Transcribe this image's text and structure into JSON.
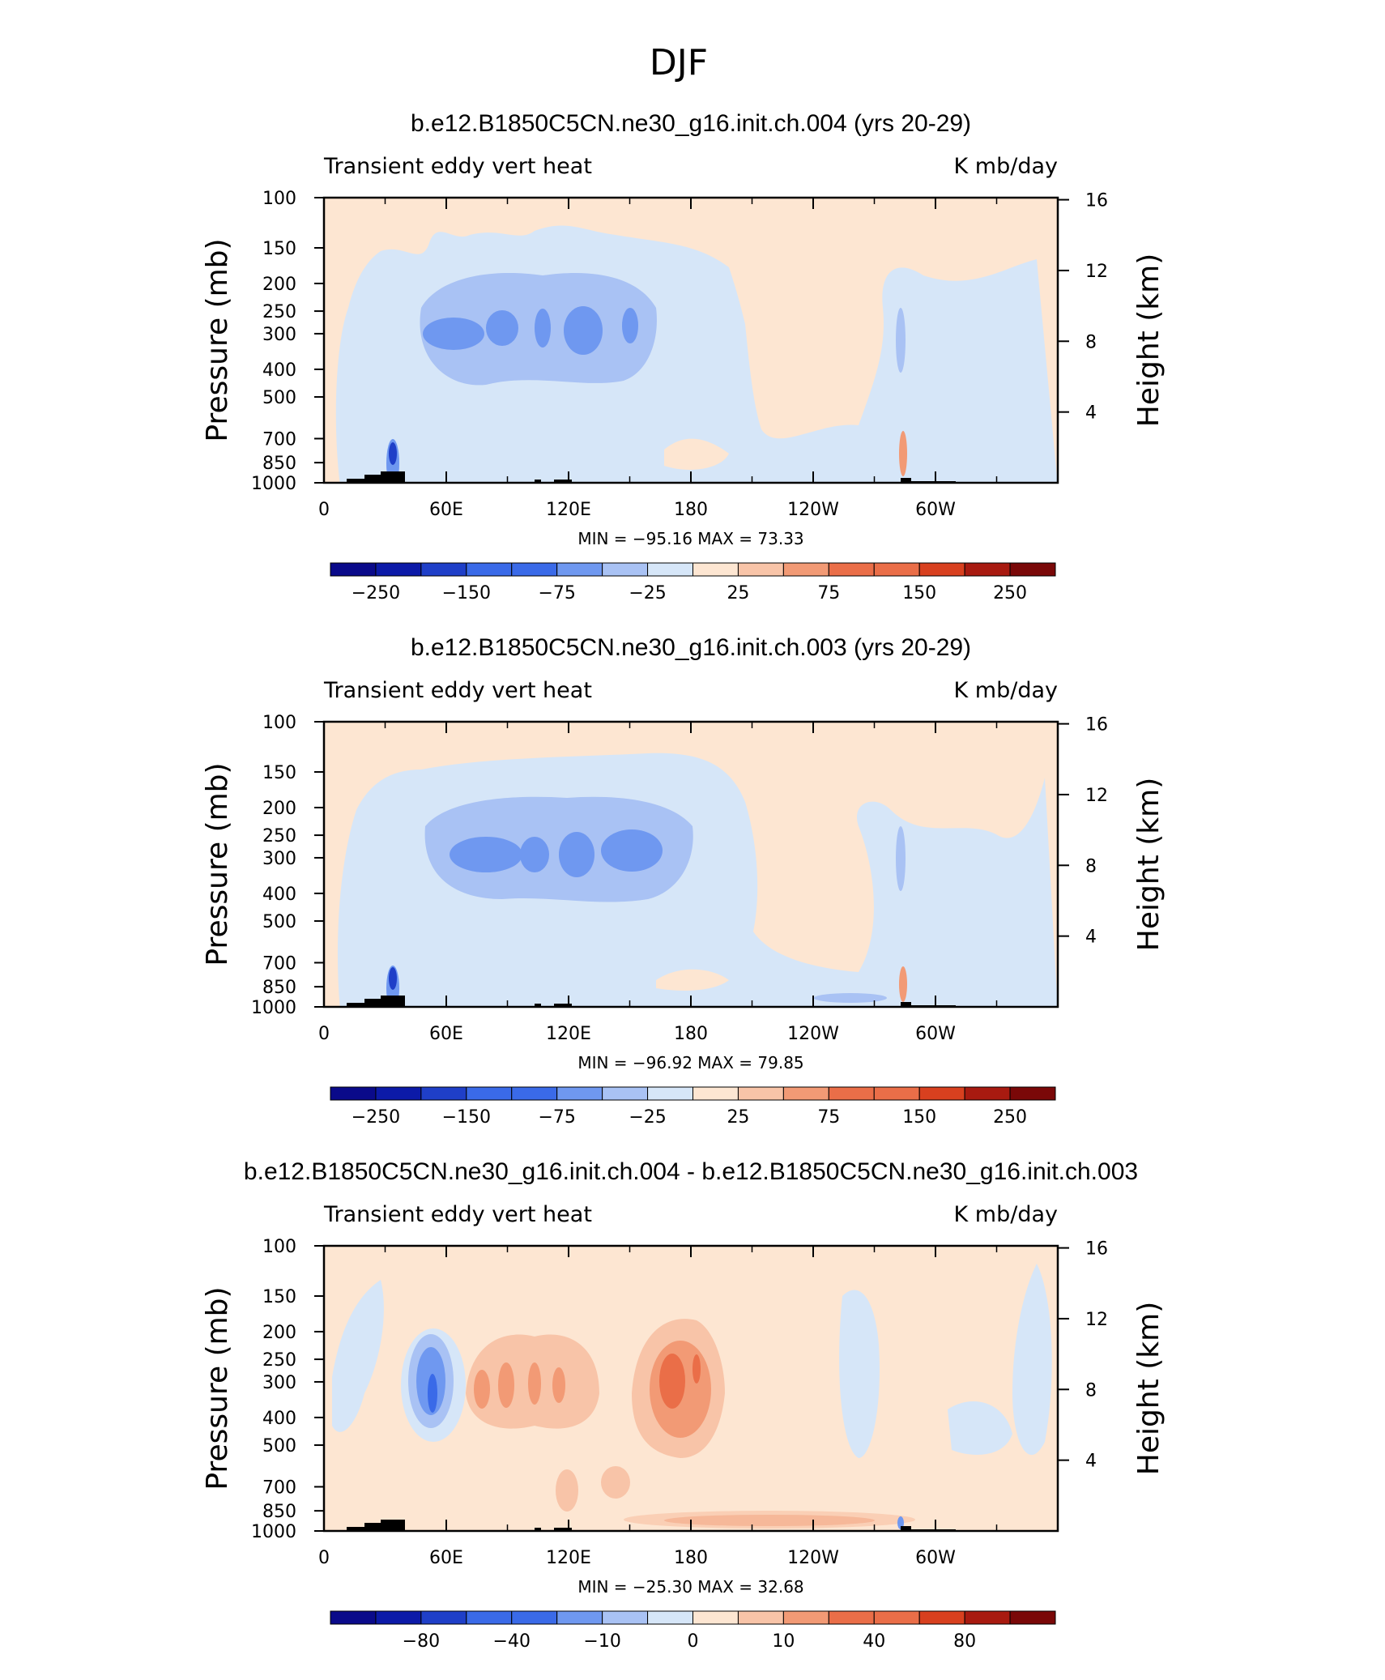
{
  "figure_title": "DJF",
  "palette": {
    "n_blue_dark": "#0a0a8a",
    "n_blue": "#1f3fc8",
    "n_blue_mid": "#3a6ae8",
    "n_blue_light": "#6f98f0",
    "n_blue_pale": "#a9c2f4",
    "n_blue_faint": "#d6e6f8",
    "p_faint": "#fde6d2",
    "p_pale": "#f8c4a8",
    "p_light": "#f29a75",
    "p_mid": "#ea6e48",
    "p_red": "#d8401f",
    "p_dark": "#a81a10",
    "p_darkest": "#7a0808",
    "topo": "#000000"
  },
  "chart_data": [
    {
      "type": "heatmap",
      "title": "b.e12.B1850C5CN.ne30_g16.init.ch.004 (yrs 20-29)",
      "left_label": "Transient eddy vert heat",
      "right_label": "K mb/day",
      "ylabel": "Pressure (mb)",
      "ylabel_right": "Height (km)",
      "x_ticks": [
        "0",
        "60E",
        "120E",
        "180",
        "120W",
        "60W"
      ],
      "x_tick_values": [
        0,
        60,
        120,
        180,
        240,
        300
      ],
      "xlim": [
        0,
        360
      ],
      "y_ticks": [
        "100",
        "150",
        "200",
        "250",
        "300",
        "400",
        "500",
        "700",
        "850",
        "1000"
      ],
      "y_tick_values": [
        100,
        150,
        200,
        250,
        300,
        400,
        500,
        700,
        850,
        1000
      ],
      "ylim": [
        1000,
        100
      ],
      "y_right_ticks": [
        "16",
        "12",
        "8",
        "4"
      ],
      "y_right_values": [
        16,
        12,
        8,
        4
      ],
      "min_max_text": "MIN = −95.16   MAX =   73.33",
      "min": -95.16,
      "max": 73.33,
      "colorbar_labels": [
        "−250",
        "−150",
        "−75",
        "−25",
        "25",
        "75",
        "150",
        "250"
      ]
    },
    {
      "type": "heatmap",
      "title": "b.e12.B1850C5CN.ne30_g16.init.ch.003 (yrs 20-29)",
      "left_label": "Transient eddy vert heat",
      "right_label": "K mb/day",
      "ylabel": "Pressure (mb)",
      "ylabel_right": "Height (km)",
      "x_ticks": [
        "0",
        "60E",
        "120E",
        "180",
        "120W",
        "60W"
      ],
      "x_tick_values": [
        0,
        60,
        120,
        180,
        240,
        300
      ],
      "xlim": [
        0,
        360
      ],
      "y_ticks": [
        "100",
        "150",
        "200",
        "250",
        "300",
        "400",
        "500",
        "700",
        "850",
        "1000"
      ],
      "y_tick_values": [
        100,
        150,
        200,
        250,
        300,
        400,
        500,
        700,
        850,
        1000
      ],
      "ylim": [
        1000,
        100
      ],
      "y_right_ticks": [
        "16",
        "12",
        "8",
        "4"
      ],
      "y_right_values": [
        16,
        12,
        8,
        4
      ],
      "min_max_text": "MIN = −96.92   MAX =   79.85",
      "min": -96.92,
      "max": 79.85,
      "colorbar_labels": [
        "−250",
        "−150",
        "−75",
        "−25",
        "25",
        "75",
        "150",
        "250"
      ]
    },
    {
      "type": "heatmap",
      "title": "b.e12.B1850C5CN.ne30_g16.init.ch.004 - b.e12.B1850C5CN.ne30_g16.init.ch.003",
      "left_label": "Transient eddy vert heat",
      "right_label": "K mb/day",
      "ylabel": "Pressure (mb)",
      "ylabel_right": "Height (km)",
      "x_ticks": [
        "0",
        "60E",
        "120E",
        "180",
        "120W",
        "60W"
      ],
      "x_tick_values": [
        0,
        60,
        120,
        180,
        240,
        300
      ],
      "xlim": [
        0,
        360
      ],
      "y_ticks": [
        "100",
        "150",
        "200",
        "250",
        "300",
        "400",
        "500",
        "700",
        "850",
        "1000"
      ],
      "y_tick_values": [
        100,
        150,
        200,
        250,
        300,
        400,
        500,
        700,
        850,
        1000
      ],
      "ylim": [
        1000,
        100
      ],
      "y_right_ticks": [
        "16",
        "12",
        "8",
        "4"
      ],
      "y_right_values": [
        16,
        12,
        8,
        4
      ],
      "min_max_text": "MIN = −25.30   MAX =   32.68",
      "min": -25.3,
      "max": 32.68,
      "colorbar_labels": [
        "−80",
        "−40",
        "−10",
        "0",
        "10",
        "40",
        "80"
      ]
    }
  ]
}
